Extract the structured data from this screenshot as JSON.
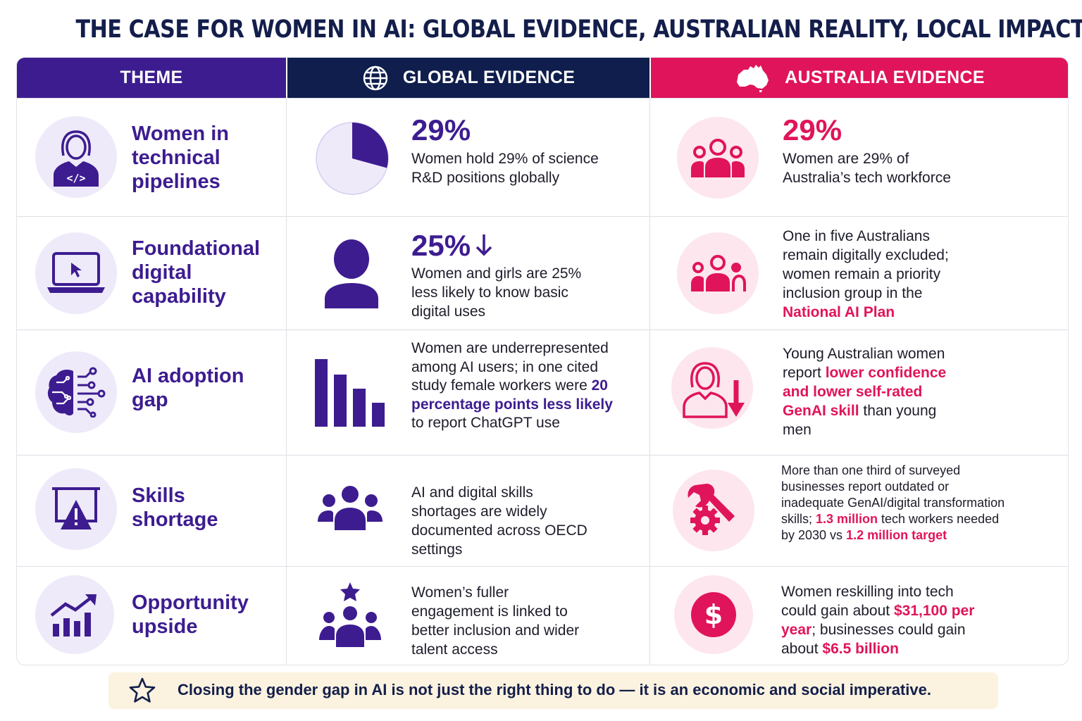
{
  "title": "THE CASE FOR WOMEN IN AI: GLOBAL EVIDENCE, AUSTRALIAN REALITY, LOCAL IMPACT",
  "headers": {
    "theme": "THEME",
    "global": "GLOBAL EVIDENCE",
    "australia": "AUSTRALIA EVIDENCE",
    "global_icon": "globe-icon",
    "australia_icon": "australia-map-icon"
  },
  "colors": {
    "purple": "#3d1c90",
    "navy": "#0f1e4c",
    "pink": "#e0145a",
    "purple_light": "#eeeaf9",
    "pink_light": "#fde6ee"
  },
  "rows": [
    {
      "theme": "Women in technical pipelines",
      "theme_icon": "woman-coder-icon",
      "global_icon": "pie-29-percent-icon",
      "global_stat": "29%",
      "global_text": "Women hold 29% of science R&D positions globally",
      "au_icon": "group-people-icon",
      "au_stat": "29%",
      "au_text": "Women are 29% of Australia’s tech workforce"
    },
    {
      "theme": "Foundational digital capability",
      "theme_icon": "laptop-cursor-icon",
      "global_icon": "person-silhouette-icon",
      "global_stat": "25%",
      "global_text": "Women and girls are 25% less likely to know basic digital uses",
      "au_icon": "group-people-icon",
      "au_text_1": "One in five Australians remain digitally excluded; women remain a priority inclusion group in the ",
      "au_text_2": "National AI Plan"
    },
    {
      "theme": "AI adoption gap",
      "theme_icon": "ai-brain-circuit-icon",
      "global_icon": "declining-bar-chart-icon",
      "global_text_1": "Women are underrepresented among AI users; in one cited study female workers were ",
      "global_text_2": "20 percentage points less likely",
      "global_text_3": " to report ChatGPT use",
      "au_icon": "woman-down-arrow-icon",
      "au_text_1": "Young Australian women report ",
      "au_text_2": "lower confidence and lower self-rated GenAI skill",
      "au_text_3": " than young men"
    },
    {
      "theme": "Skills shortage",
      "theme_icon": "warning-board-icon",
      "global_icon": "team-group-icon",
      "global_text": "AI and digital skills shortages are widely documented across OECD settings",
      "au_icon": "wrench-gear-icon",
      "au_text_1": "More than one third of surveyed businesses report outdated or inadequate GenAI/digital transformation skills; ",
      "au_text_2": "1.3 million",
      "au_text_3": " tech workers needed by 2030 vs ",
      "au_text_4": "1.2 million target"
    },
    {
      "theme": "Opportunity upside",
      "theme_icon": "growth-chart-icon",
      "global_icon": "star-team-icon",
      "global_text": "Women’s fuller engagement is linked to better inclusion and wider talent access",
      "au_icon": "dollar-coin-icon",
      "au_text_1": "Women reskilling into tech could gain about ",
      "au_text_2": "$31,100 per year",
      "au_text_3": "; businesses could gain about ",
      "au_text_4": "$6.5 billion"
    }
  ],
  "footer": {
    "icon": "star-outline-icon",
    "text": "Closing the gender gap in AI is not just the right thing to do — it is an economic and social imperative."
  }
}
